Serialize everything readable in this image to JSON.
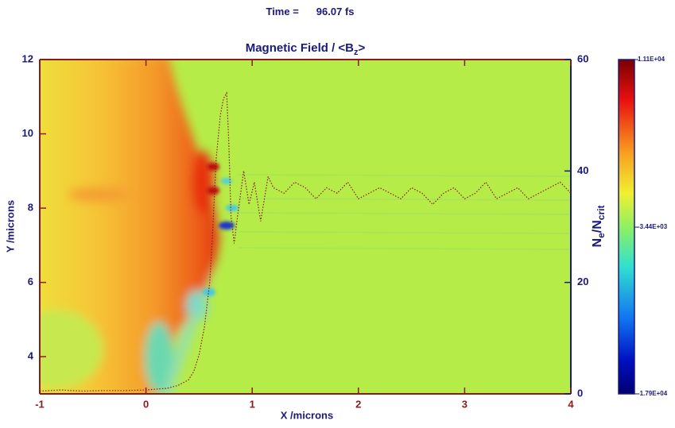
{
  "chart_data": {
    "type": "line",
    "time_label": "Time =",
    "time_value": "96.07 fs",
    "title": "Magnetic Field / <B",
    "title_sub": "z",
    "title_end": ">",
    "xlabel": "X /microns",
    "ylabel": "Y /microns",
    "y2label": "N",
    "y2label_sub": "e",
    "y2label_mid": "/N",
    "y2label_sub2": "crit",
    "xlim": [
      -1,
      4
    ],
    "xticks": [
      -1,
      0,
      1,
      2,
      3,
      4
    ],
    "ylim": [
      3,
      12
    ],
    "yticks": [
      4,
      6,
      8,
      10,
      12
    ],
    "y2lim": [
      0,
      60
    ],
    "y2ticks": [
      0,
      20,
      40,
      60
    ],
    "x": [
      -1,
      -0.8,
      -0.6,
      -0.4,
      -0.2,
      0,
      0.2,
      0.3,
      0.4,
      0.45,
      0.5,
      0.55,
      0.6,
      0.63,
      0.66,
      0.7,
      0.73,
      0.76,
      0.78,
      0.8,
      0.83,
      0.87,
      0.92,
      0.97,
      1.02,
      1.08,
      1.15,
      1.2,
      1.3,
      1.4,
      1.5,
      1.6,
      1.7,
      1.8,
      1.9,
      2.0,
      2.1,
      2.2,
      2.3,
      2.4,
      2.5,
      2.6,
      2.7,
      2.8,
      2.9,
      3.0,
      3.1,
      3.2,
      3.3,
      3.4,
      3.5,
      3.6,
      3.7,
      3.8,
      3.9,
      4.0
    ],
    "series": [
      {
        "color": "#8b1a1a",
        "axis": "y2",
        "values": [
          0.5,
          0.7,
          0.5,
          0.6,
          0.6,
          0.7,
          1,
          1.5,
          2.5,
          4,
          7,
          12,
          20,
          30,
          42,
          50,
          53,
          54,
          45,
          32,
          27,
          33,
          40,
          34,
          38,
          31,
          39,
          37,
          36,
          38,
          37,
          35,
          37,
          36,
          38,
          35,
          36,
          37,
          36,
          35,
          37,
          36,
          34,
          36,
          37,
          35,
          36,
          38,
          35,
          36,
          37,
          35,
          36,
          37,
          38,
          36
        ]
      }
    ],
    "colorbar": {
      "lim": [
        -17900,
        11100
      ],
      "ticks": [
        {
          "value": 11100,
          "label": "1.11E+04"
        },
        {
          "value": -3440,
          "label": "-3.44E+03"
        },
        {
          "value": -17900,
          "label": "-1.79E+04"
        }
      ]
    }
  }
}
